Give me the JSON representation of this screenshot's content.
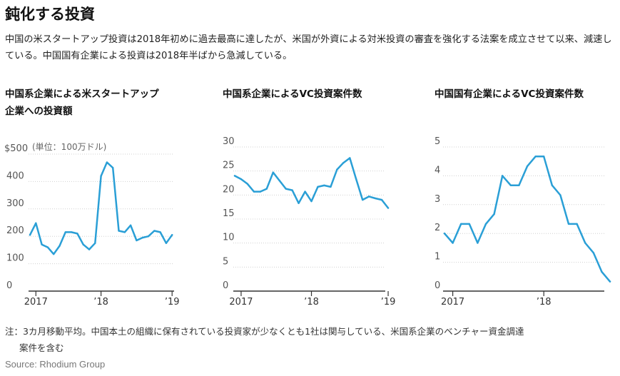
{
  "page": {
    "title": "鈍化する投資",
    "description": "中国の米スタートアップ投資は2018年初めに過去最高に達したが、米国が外資による対米投資の審査を強化する法案を成立させて以来、減速している。中国国有企業による投資は2018年半ばから急減している。",
    "note_line1": "注：3カ月移動平均。中国本土の組織に保有されている投資家が少なくとも1社は関与している、米国系企業のベンチャー資金調達",
    "note_line2": "案件を含む",
    "source": "Source: Rhodium Group"
  },
  "colors": {
    "line": "#2a9fd6",
    "grid": "#d0d0d0",
    "axis": "#333333",
    "tick_text": "#555555"
  },
  "chart_data": [
    {
      "type": "line",
      "title_line1": "中国系企業による米スタートアップ",
      "title_line2": "企業への投資額",
      "unit_label": "(単位：100万ドル)",
      "y_ticks": [
        "$500",
        "400",
        "300",
        "200",
        "100",
        "0"
      ],
      "ylim": [
        0,
        500
      ],
      "x_ticks": [
        "2017",
        "’18",
        "’19"
      ],
      "x_tick_index": [
        1,
        12,
        24
      ],
      "values": [
        205,
        248,
        170,
        160,
        135,
        165,
        215,
        215,
        210,
        170,
        152,
        175,
        420,
        470,
        450,
        220,
        215,
        240,
        185,
        195,
        200,
        220,
        215,
        175,
        205
      ]
    },
    {
      "type": "line",
      "title_line1": "中国系企業によるVC投資案件数",
      "y_ticks": [
        "30",
        "25",
        "20",
        "15",
        "10",
        "5",
        "0"
      ],
      "ylim": [
        0,
        30
      ],
      "x_ticks": [
        "2017",
        "’18",
        "’19"
      ],
      "x_tick_index": [
        1,
        12,
        24
      ],
      "values": [
        24,
        23.3,
        22.3,
        20.7,
        20.7,
        21.3,
        24.7,
        23,
        21.3,
        21,
        18.3,
        20.7,
        18.7,
        21.7,
        22,
        21.7,
        25.3,
        26.7,
        27.7,
        23.3,
        19,
        19.7,
        19.3,
        19,
        17.3
      ]
    },
    {
      "type": "line",
      "title_line1": "中国国有企業によるVC投資案件数",
      "y_ticks": [
        "5",
        "4",
        "3",
        "2",
        "1",
        "0"
      ],
      "ylim": [
        0,
        5
      ],
      "x_ticks": [
        "2017",
        "’18",
        "’19"
      ],
      "x_tick_index": [
        1,
        12,
        24
      ],
      "values": [
        2,
        1.67,
        2.33,
        2.33,
        1.67,
        2.33,
        2.67,
        4,
        3.67,
        3.67,
        4.33,
        4.67,
        4.67,
        3.67,
        3.33,
        2.33,
        2.33,
        1.67,
        1.33,
        0.67,
        0.33
      ]
    }
  ]
}
